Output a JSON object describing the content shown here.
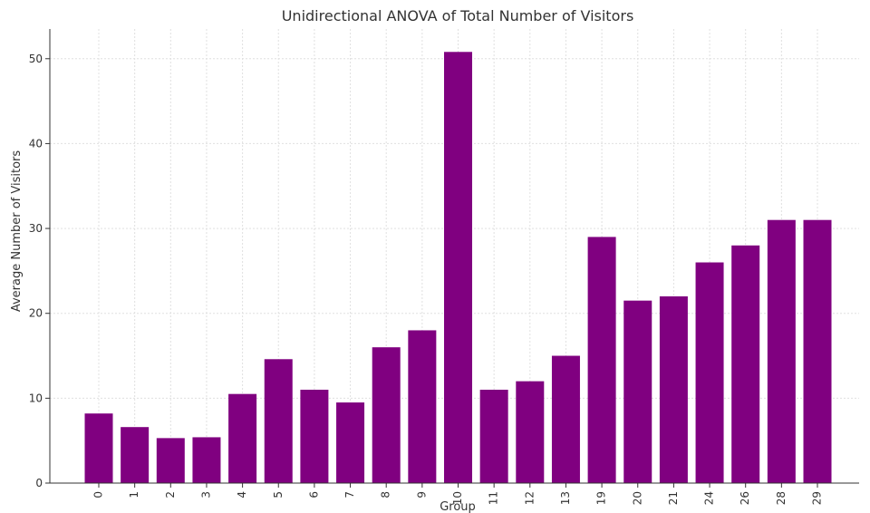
{
  "chart_data": {
    "type": "bar",
    "title": "Unidirectional ANOVA of Total Number of Visitors",
    "xlabel": "Group",
    "ylabel": "Average Number of Visitors",
    "categories": [
      "0",
      "1",
      "2",
      "3",
      "4",
      "5",
      "6",
      "7",
      "8",
      "9",
      "10",
      "11",
      "12",
      "13",
      "19",
      "20",
      "21",
      "24",
      "26",
      "28",
      "29"
    ],
    "values": [
      8.2,
      6.6,
      5.3,
      5.4,
      10.5,
      14.6,
      11.0,
      9.5,
      16.0,
      18.0,
      50.8,
      11.0,
      12.0,
      15.0,
      29.0,
      21.5,
      22.0,
      26.0,
      28.0,
      31.0,
      31.0
    ],
    "ylim": [
      0,
      53.5
    ],
    "yticks": [
      0,
      10,
      20,
      30,
      40,
      50
    ],
    "grid": true,
    "bar_color": "#800080",
    "grid_color": "#e0e0e0",
    "axis_color": "#333333"
  }
}
